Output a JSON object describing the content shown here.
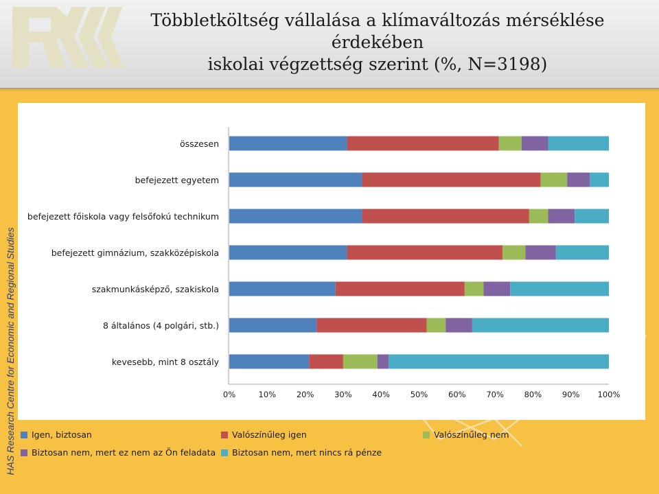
{
  "header": {
    "title_line1": "Többletköltség vállalása a klímaváltozás mérséklése érdekében",
    "title_line2": "iskolai végzettség szerint (%, N=3198)",
    "logo_letters": "RK"
  },
  "side_label": "HAS Research Centre for Economic and Regional Studies",
  "colors": {
    "background": "#f7c144",
    "series": [
      "#4f81bd",
      "#c0504d",
      "#9bbb59",
      "#8064a2",
      "#4bacc6"
    ]
  },
  "chart_data": {
    "type": "bar",
    "orientation": "horizontal",
    "stacked": "percent",
    "categories": [
      "összesen",
      "befejezett egyetem",
      "befejezett főiskola vagy felsőfokú technikum",
      "befejezett gimnázium, szakközépiskola",
      "szakmunkásképző, szakiskola",
      "8 általános (4 polgári, stb.)",
      "kevesebb, mint 8 osztály"
    ],
    "series": [
      {
        "name": "Igen, biztosan",
        "color": "#4f81bd",
        "values": [
          31,
          35,
          35,
          31,
          28,
          23,
          21
        ]
      },
      {
        "name": "Valószínűleg igen",
        "color": "#c0504d",
        "values": [
          40,
          47,
          44,
          41,
          34,
          29,
          9
        ]
      },
      {
        "name": "Valószínűleg nem",
        "color": "#9bbb59",
        "values": [
          6,
          7,
          5,
          6,
          5,
          5,
          9
        ]
      },
      {
        "name": "Biztosan nem, mert ez nem az Ön feladata",
        "color": "#8064a2",
        "values": [
          7,
          6,
          7,
          8,
          7,
          7,
          3
        ]
      },
      {
        "name": "Biztosan nem, mert nincs rá pénze",
        "color": "#4bacc6",
        "values": [
          16,
          5,
          9,
          14,
          26,
          36,
          58
        ]
      }
    ],
    "xticks": [
      "0%",
      "10%",
      "20%",
      "30%",
      "40%",
      "50%",
      "60%",
      "70%",
      "80%",
      "90%",
      "100%"
    ],
    "xlim": [
      0,
      100
    ],
    "grid": false,
    "legend_position": "bottom"
  }
}
